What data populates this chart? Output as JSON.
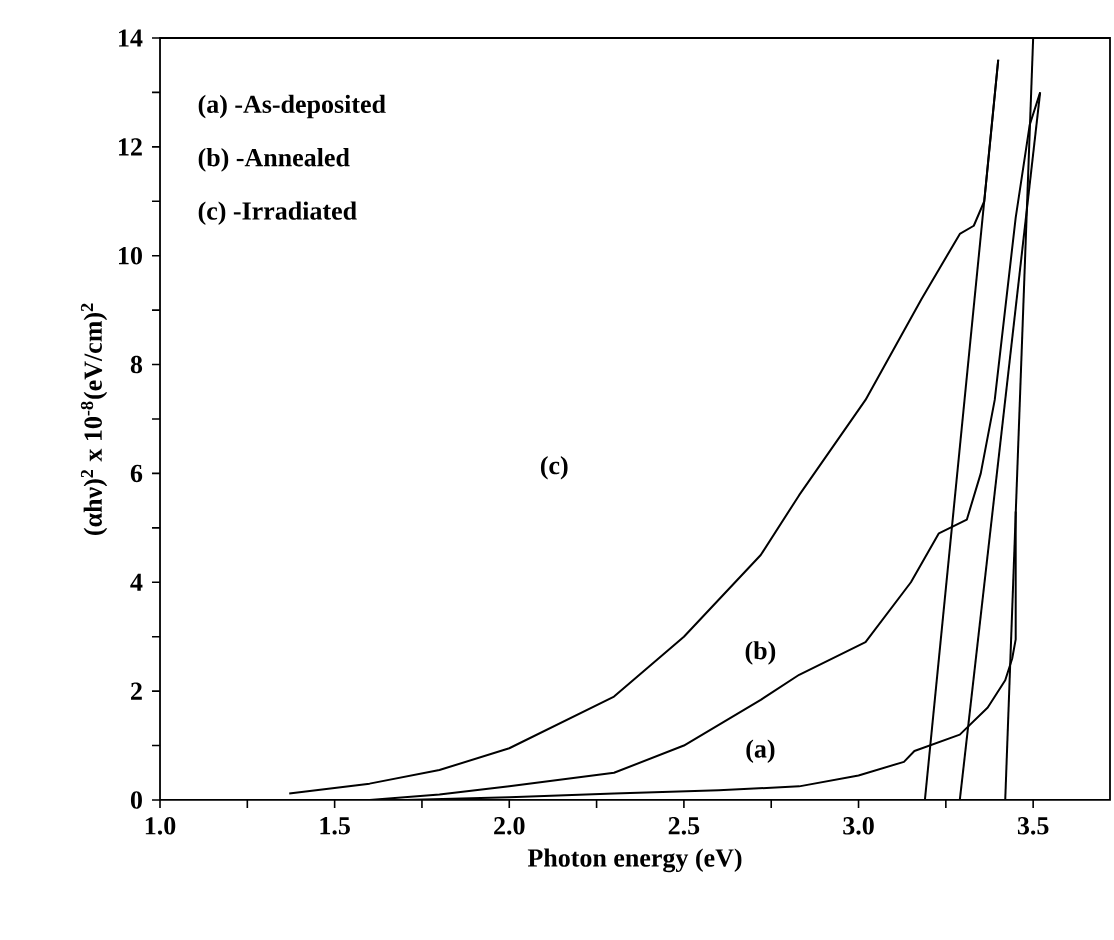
{
  "chart_data": {
    "type": "line",
    "xlabel": "Photon energy (eV)",
    "ylabel": "(αhν)$^{2}$ x 10$^{-8}$(eV/cm)$^{2}$",
    "xlim": [
      1.0,
      3.72
    ],
    "ylim": [
      0,
      14
    ],
    "xticks": [
      {
        "value": 1.0,
        "label": "1.0"
      },
      {
        "value": 1.25,
        "label": null
      },
      {
        "value": 1.5,
        "label": "1.5"
      },
      {
        "value": 1.75,
        "label": null
      },
      {
        "value": 2.0,
        "label": "2.0"
      },
      {
        "value": 2.25,
        "label": null
      },
      {
        "value": 2.5,
        "label": "2.5"
      },
      {
        "value": 2.75,
        "label": null
      },
      {
        "value": 3.0,
        "label": "3.0"
      },
      {
        "value": 3.25,
        "label": null
      },
      {
        "value": 3.5,
        "label": "3.5"
      }
    ],
    "yticks": [
      0,
      {
        "value": 1,
        "label": null
      },
      2,
      {
        "value": 3,
        "label": null
      },
      4,
      {
        "value": 5,
        "label": null
      },
      6,
      {
        "value": 7,
        "label": null
      },
      8,
      {
        "value": 9,
        "label": null
      },
      10,
      {
        "value": 11,
        "label": null
      },
      12,
      {
        "value": 13,
        "label": null
      },
      14
    ],
    "series": [
      {
        "color": "#000000",
        "x": [
          1.7,
          2.0,
          2.3,
          2.6,
          2.83,
          3.0,
          3.13,
          3.16,
          3.29,
          3.37,
          3.42,
          3.44,
          3.45,
          3.45
        ],
        "values": [
          0.0,
          0.05,
          0.12,
          0.18,
          0.25,
          0.45,
          0.7,
          0.9,
          1.2,
          1.7,
          2.2,
          2.6,
          2.95,
          5.3
        ]
      },
      {
        "color": "#000000",
        "x": [
          1.6,
          1.8,
          2.0,
          2.3,
          2.5,
          2.72,
          2.83,
          3.02,
          3.15,
          3.23,
          3.31,
          3.35,
          3.39,
          3.45,
          3.49,
          3.52
        ],
        "values": [
          0.0,
          0.1,
          0.25,
          0.5,
          1.0,
          1.84,
          2.3,
          2.9,
          4.0,
          4.9,
          5.15,
          6.0,
          7.35,
          10.7,
          12.4,
          13.0
        ]
      },
      {
        "color": "#000000",
        "x": [
          1.37,
          1.6,
          1.8,
          2.0,
          2.3,
          2.5,
          2.72,
          2.83,
          3.02,
          3.18,
          3.29,
          3.33,
          3.36,
          3.4
        ],
        "values": [
          0.12,
          0.3,
          0.55,
          0.95,
          1.9,
          3.0,
          4.5,
          5.6,
          7.35,
          9.2,
          10.4,
          10.55,
          11.0,
          13.6
        ]
      },
      {
        "color": "#000000",
        "x": [
          3.4,
          3.19
        ],
        "values": [
          13.6,
          0
        ]
      },
      {
        "color": "#000000",
        "x": [
          3.52,
          3.29
        ],
        "values": [
          13.0,
          0
        ]
      },
      {
        "color": "#000000",
        "x": [
          3.5,
          3.42
        ],
        "values": [
          14.0,
          0
        ]
      }
    ],
    "annotations": [
      "(a) -As-deposited",
      "(b) -Annealed",
      "(c) -Irradiated",
      "(a)",
      "(b)",
      "(c)"
    ],
    "grid": false
  }
}
